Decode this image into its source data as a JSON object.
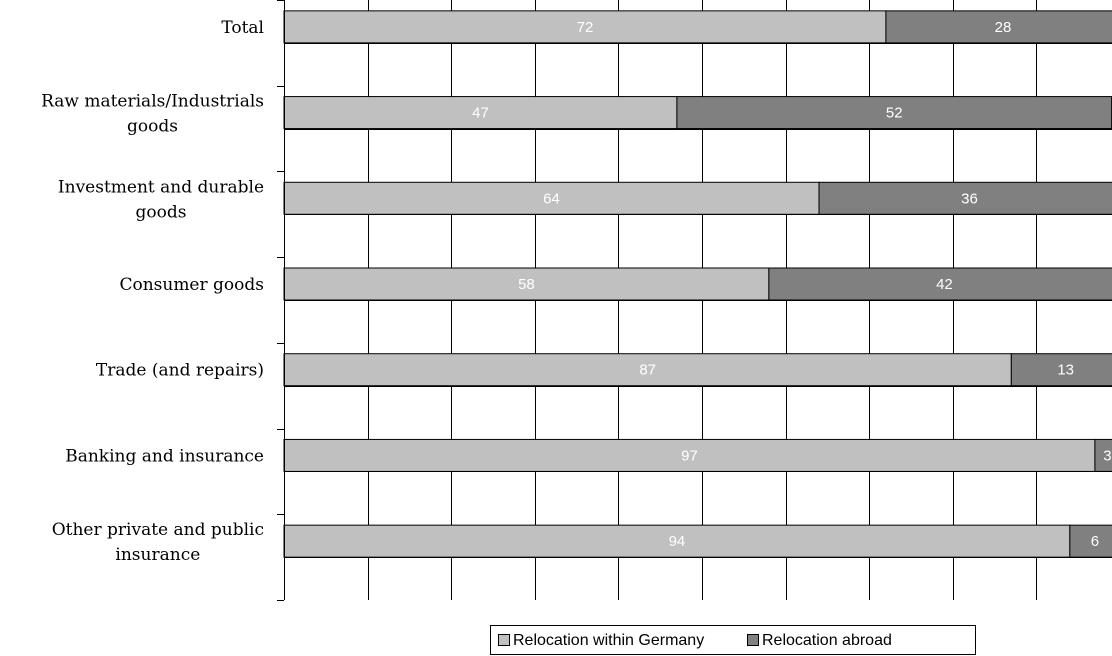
{
  "chart_data": {
    "type": "bar",
    "orientation": "horizontal",
    "stacked": true,
    "categories": [
      [
        "Total"
      ],
      [
        "Raw materials/Industrials",
        "goods"
      ],
      [
        "Investment and durable",
        "goods"
      ],
      [
        "Consumer goods"
      ],
      [
        "Trade (and repairs)"
      ],
      [
        "Banking and insurance"
      ],
      [
        "Other private and public",
        "insurance"
      ]
    ],
    "series": [
      {
        "name": "Relocation within Germany",
        "color": "#c0c0c0",
        "values": [
          72,
          47,
          64,
          58,
          87,
          97,
          94
        ]
      },
      {
        "name": "Relocation abroad",
        "color": "#808080",
        "values": [
          28,
          52,
          36,
          42,
          13,
          3,
          6
        ]
      }
    ],
    "xlim": [
      0,
      100
    ],
    "grid": true,
    "legend_position": "bottom"
  }
}
